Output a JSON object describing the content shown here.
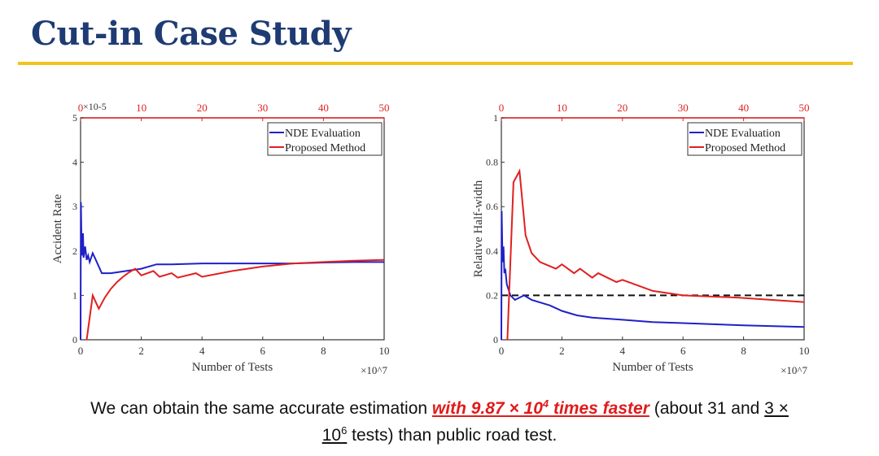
{
  "slide": {
    "title": "Cut-in Case Study",
    "accent_color": "#f0c419",
    "title_color": "#1f3b73"
  },
  "caption": {
    "part1": "We can obtain the same accurate estimation ",
    "highlight_base": "with 9.87 × 10",
    "highlight_exp": "4",
    "highlight_rest": " times faster",
    "part2": " (about 31 and ",
    "underlined_base": "3 ×",
    "line2_base": "10",
    "line2_exp": "6",
    "line2_rest": " tests) than public road test."
  },
  "chart_data": [
    {
      "type": "line",
      "ylabel": "Accident Rate",
      "xlabel": "Number of Tests",
      "y_multiplier": "×10-5",
      "x_multiplier": "×10^7",
      "ylim": [
        0,
        5
      ],
      "xlim_bottom": [
        0,
        10
      ],
      "xlim_top": [
        0,
        50
      ],
      "yticks": [
        "0",
        "1",
        "2",
        "3",
        "4",
        "5"
      ],
      "xticks_bottom": [
        "0",
        "2",
        "4",
        "6",
        "8",
        "10"
      ],
      "xticks_top": [
        "0",
        "10",
        "20",
        "30",
        "40",
        "50"
      ],
      "legend": [
        "NDE Evaluation",
        "Proposed Method"
      ],
      "legend_position": "top-right",
      "series": [
        {
          "name": "NDE Evaluation",
          "axis": "bottom",
          "color": "#2020c8",
          "x": [
            0,
            0.01,
            0.03,
            0.05,
            0.08,
            0.1,
            0.15,
            0.2,
            0.25,
            0.3,
            0.4,
            0.5,
            0.7,
            1,
            1.5,
            2,
            2.5,
            3,
            4,
            5,
            6,
            7,
            8,
            9,
            10
          ],
          "y": [
            0,
            3.1,
            2.3,
            1.9,
            2.4,
            1.85,
            2.1,
            1.8,
            1.9,
            1.75,
            1.95,
            1.8,
            1.5,
            1.5,
            1.55,
            1.6,
            1.7,
            1.7,
            1.72,
            1.72,
            1.72,
            1.72,
            1.74,
            1.75,
            1.75
          ]
        },
        {
          "name": "Proposed Method",
          "axis": "top",
          "color": "#e02020",
          "x": [
            1,
            2,
            3,
            4,
            5,
            6,
            7,
            8,
            9,
            10,
            12,
            13,
            15,
            16,
            19,
            20,
            25,
            30,
            35,
            40,
            45,
            50
          ],
          "y": [
            0,
            1.0,
            0.7,
            0.95,
            1.15,
            1.3,
            1.42,
            1.52,
            1.6,
            1.45,
            1.55,
            1.42,
            1.5,
            1.4,
            1.5,
            1.42,
            1.55,
            1.65,
            1.72,
            1.75,
            1.78,
            1.8
          ]
        }
      ]
    },
    {
      "type": "line",
      "ylabel": "Relative Half-width",
      "xlabel": "Number of Tests",
      "x_multiplier": "×10^7",
      "ylim": [
        0,
        1
      ],
      "xlim_bottom": [
        0,
        10
      ],
      "xlim_top": [
        0,
        50
      ],
      "yticks": [
        "0",
        "0.2",
        "0.4",
        "0.6",
        "0.8",
        "1"
      ],
      "xticks_bottom": [
        "0",
        "2",
        "4",
        "6",
        "8",
        "10"
      ],
      "xticks_top": [
        "0",
        "10",
        "20",
        "30",
        "40",
        "50"
      ],
      "legend": [
        "NDE Evaluation",
        "Proposed Method"
      ],
      "legend_position": "top-right",
      "threshold": 0.2,
      "series": [
        {
          "name": "NDE Evaluation",
          "axis": "bottom",
          "color": "#2020c8",
          "x": [
            0,
            0.01,
            0.04,
            0.07,
            0.1,
            0.13,
            0.18,
            0.3,
            0.45,
            0.6,
            0.75,
            1,
            1.6,
            2,
            2.5,
            3,
            4,
            5,
            6,
            8,
            10
          ],
          "y": [
            0,
            0.58,
            0.35,
            0.42,
            0.3,
            0.32,
            0.25,
            0.2,
            0.18,
            0.19,
            0.2,
            0.18,
            0.155,
            0.13,
            0.11,
            0.1,
            0.09,
            0.08,
            0.075,
            0.065,
            0.058
          ]
        },
        {
          "name": "Proposed Method",
          "axis": "top",
          "color": "#e02020",
          "x": [
            1,
            2,
            3,
            4,
            5,
            6.4,
            9,
            10,
            12,
            13,
            15,
            16,
            19,
            20,
            25,
            30,
            39,
            50
          ],
          "y": [
            0,
            0.71,
            0.76,
            0.47,
            0.39,
            0.35,
            0.32,
            0.34,
            0.3,
            0.32,
            0.28,
            0.3,
            0.26,
            0.27,
            0.22,
            0.2,
            0.19,
            0.17
          ]
        }
      ]
    }
  ]
}
